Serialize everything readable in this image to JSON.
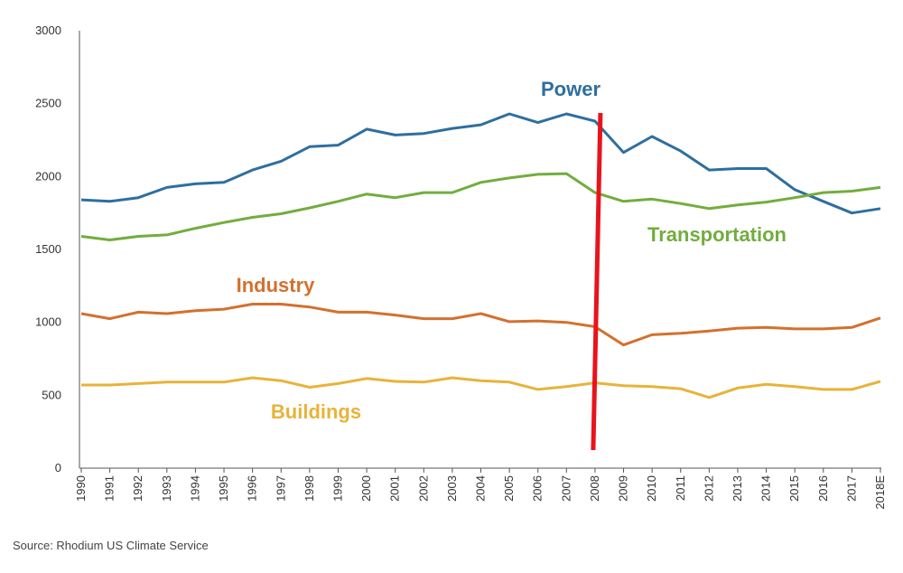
{
  "chart_data": {
    "type": "line",
    "title": "",
    "xlabel": "",
    "ylabel": "",
    "x": [
      "1990",
      "1991",
      "1992",
      "1993",
      "1994",
      "1995",
      "1996",
      "1997",
      "1998",
      "1999",
      "2000",
      "2001",
      "2002",
      "2003",
      "2004",
      "2005",
      "2006",
      "2007",
      "2008",
      "2009",
      "2010",
      "2011",
      "2012",
      "2013",
      "2014",
      "2015",
      "2016",
      "2017",
      "2018E"
    ],
    "ylim": [
      0,
      3000
    ],
    "yticks": [
      0,
      500,
      1000,
      1500,
      2000,
      2500,
      3000
    ],
    "series": [
      {
        "name": "Power",
        "color": "#2e6f9e",
        "values": [
          1840,
          1830,
          1855,
          1925,
          1950,
          1960,
          2045,
          2105,
          2205,
          2215,
          2325,
          2285,
          2295,
          2330,
          2355,
          2430,
          2370,
          2430,
          2380,
          2165,
          2275,
          2175,
          2045,
          2055,
          2055,
          1910,
          1830,
          1750,
          1780
        ]
      },
      {
        "name": "Transportation",
        "color": "#72ad3e",
        "values": [
          1590,
          1565,
          1590,
          1600,
          1645,
          1685,
          1720,
          1745,
          1785,
          1830,
          1880,
          1855,
          1890,
          1890,
          1960,
          1990,
          2015,
          2020,
          1890,
          1830,
          1845,
          1815,
          1780,
          1805,
          1825,
          1855,
          1890,
          1900,
          1925
        ]
      },
      {
        "name": "Industry",
        "color": "#d4702e",
        "values": [
          1060,
          1025,
          1070,
          1060,
          1080,
          1090,
          1125,
          1125,
          1105,
          1070,
          1070,
          1050,
          1025,
          1025,
          1060,
          1005,
          1010,
          1000,
          970,
          845,
          915,
          925,
          940,
          960,
          965,
          955,
          955,
          965,
          1030
        ]
      },
      {
        "name": "Buildings",
        "color": "#e8b33a",
        "values": [
          570,
          570,
          580,
          590,
          590,
          590,
          620,
          600,
          555,
          580,
          615,
          595,
          590,
          620,
          600,
          590,
          540,
          560,
          585,
          565,
          560,
          545,
          485,
          550,
          575,
          560,
          540,
          540,
          595
        ]
      }
    ],
    "marker_line": {
      "color": "#e8141c",
      "at": "2008"
    },
    "source": "Source: Rhodium US Climate Service",
    "grid": false,
    "legend": "inline labels"
  }
}
